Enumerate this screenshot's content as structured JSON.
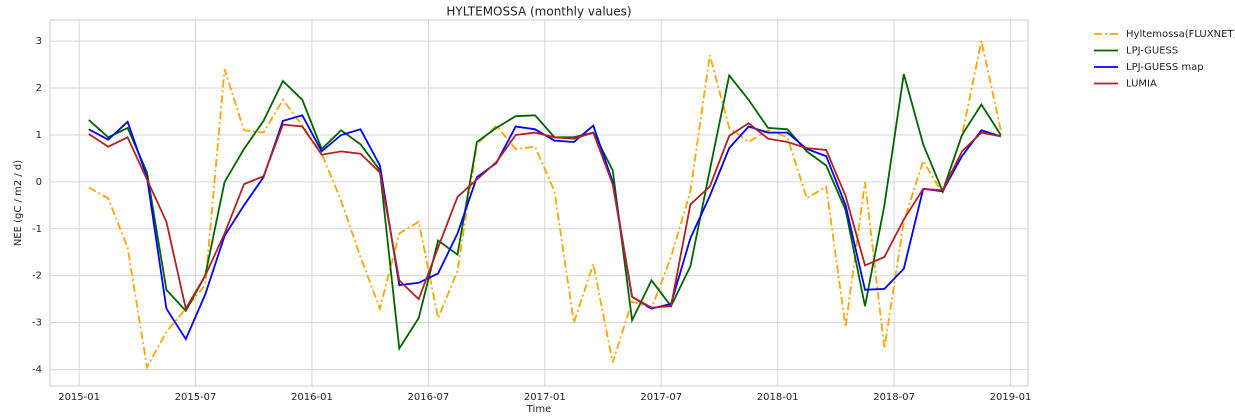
{
  "chart_data": {
    "type": "line",
    "title": "HYLTEMOSSA (monthly values)",
    "xlabel": "Time",
    "ylabel": "NEE (gC / m2 / d)",
    "x": [
      "2015-01",
      "2015-02",
      "2015-03",
      "2015-04",
      "2015-05",
      "2015-06",
      "2015-07",
      "2015-08",
      "2015-09",
      "2015-10",
      "2015-11",
      "2015-12",
      "2016-01",
      "2016-02",
      "2016-03",
      "2016-04",
      "2016-05",
      "2016-06",
      "2016-07",
      "2016-08",
      "2016-09",
      "2016-10",
      "2016-11",
      "2016-12",
      "2017-01",
      "2017-02",
      "2017-03",
      "2017-04",
      "2017-05",
      "2017-06",
      "2017-07",
      "2017-08",
      "2017-09",
      "2017-10",
      "2017-11",
      "2017-12",
      "2018-01",
      "2018-02",
      "2018-03",
      "2018-04",
      "2018-05",
      "2018-06",
      "2018-07",
      "2018-08",
      "2018-09",
      "2018-10",
      "2018-11",
      "2018-12"
    ],
    "series": [
      {
        "name": "Hyltemossa(FLUXNET)",
        "color": "#ffa500",
        "linestyle": "-.",
        "values": [
          -0.12,
          -0.35,
          -1.4,
          -3.95,
          -3.2,
          -2.7,
          -2.2,
          2.4,
          1.1,
          1.05,
          1.75,
          1.2,
          0.6,
          -0.4,
          -1.6,
          -2.7,
          -1.1,
          -0.85,
          -2.9,
          -1.9,
          0.8,
          1.2,
          0.7,
          0.75,
          -0.2,
          -3.0,
          -1.75,
          -3.85,
          -2.55,
          -2.7,
          -1.6,
          -0.2,
          2.7,
          1.15,
          0.85,
          1.1,
          0.95,
          -0.35,
          -0.1,
          -3.1,
          0.0,
          -3.55,
          -0.85,
          0.45,
          -0.25,
          1.0,
          3.0,
          1.1
        ]
      },
      {
        "name": "LPJ-GUESS",
        "color": "#006400",
        "linestyle": "-",
        "values": [
          1.32,
          0.95,
          1.15,
          0.2,
          -2.3,
          -2.75,
          -2.0,
          0.0,
          0.7,
          1.3,
          2.15,
          1.75,
          0.7,
          1.1,
          0.8,
          0.25,
          -3.55,
          -2.9,
          -1.25,
          -1.55,
          0.85,
          1.15,
          1.4,
          1.42,
          0.95,
          0.95,
          1.05,
          0.25,
          -2.95,
          -2.1,
          -2.65,
          -1.8,
          0.25,
          2.27,
          1.75,
          1.15,
          1.12,
          0.65,
          0.35,
          -0.6,
          -2.65,
          -0.5,
          2.3,
          0.8,
          -0.2,
          1.0,
          1.65,
          1.0
        ]
      },
      {
        "name": "LPJ-GUESS map",
        "color": "#0000ff",
        "linestyle": "-",
        "values": [
          1.12,
          0.9,
          1.28,
          0.1,
          -2.7,
          -3.35,
          -2.4,
          -1.15,
          -0.5,
          0.1,
          1.3,
          1.42,
          0.65,
          1.0,
          1.12,
          0.35,
          -2.2,
          -2.15,
          -1.95,
          -1.1,
          0.1,
          0.4,
          1.18,
          1.12,
          0.88,
          0.85,
          1.2,
          0.0,
          -2.45,
          -2.7,
          -2.6,
          -1.2,
          -0.3,
          0.72,
          1.18,
          1.05,
          1.05,
          0.7,
          0.55,
          -0.5,
          -2.3,
          -2.28,
          -1.85,
          -0.15,
          -0.2,
          0.55,
          1.1,
          0.97
        ]
      },
      {
        "name": "LUMIA",
        "color": "#b22222",
        "linestyle": "-",
        "values": [
          1.02,
          0.75,
          0.95,
          0.05,
          -0.85,
          -2.7,
          -2.0,
          -1.1,
          -0.05,
          0.12,
          1.22,
          1.18,
          0.58,
          0.65,
          0.6,
          0.2,
          -2.1,
          -2.5,
          -1.4,
          -0.32,
          0.05,
          0.42,
          1.0,
          1.05,
          0.95,
          0.92,
          1.05,
          -0.05,
          -2.45,
          -2.68,
          -2.65,
          -0.48,
          -0.1,
          0.98,
          1.25,
          0.92,
          0.85,
          0.72,
          0.68,
          -0.3,
          -1.78,
          -1.6,
          -0.8,
          -0.15,
          -0.18,
          0.65,
          1.05,
          0.97
        ]
      }
    ],
    "xlim": [
      "2014-11-16",
      "2019-01-28"
    ],
    "xticks": [
      "2015-01",
      "2015-07",
      "2016-01",
      "2016-07",
      "2017-01",
      "2017-07",
      "2018-01",
      "2018-07",
      "2019-01"
    ],
    "ylim": [
      -4.35,
      3.45
    ],
    "yticks": [
      -4,
      -3,
      -2,
      -1,
      0,
      1,
      2,
      3
    ],
    "grid": true,
    "legend": "outside upper right"
  }
}
